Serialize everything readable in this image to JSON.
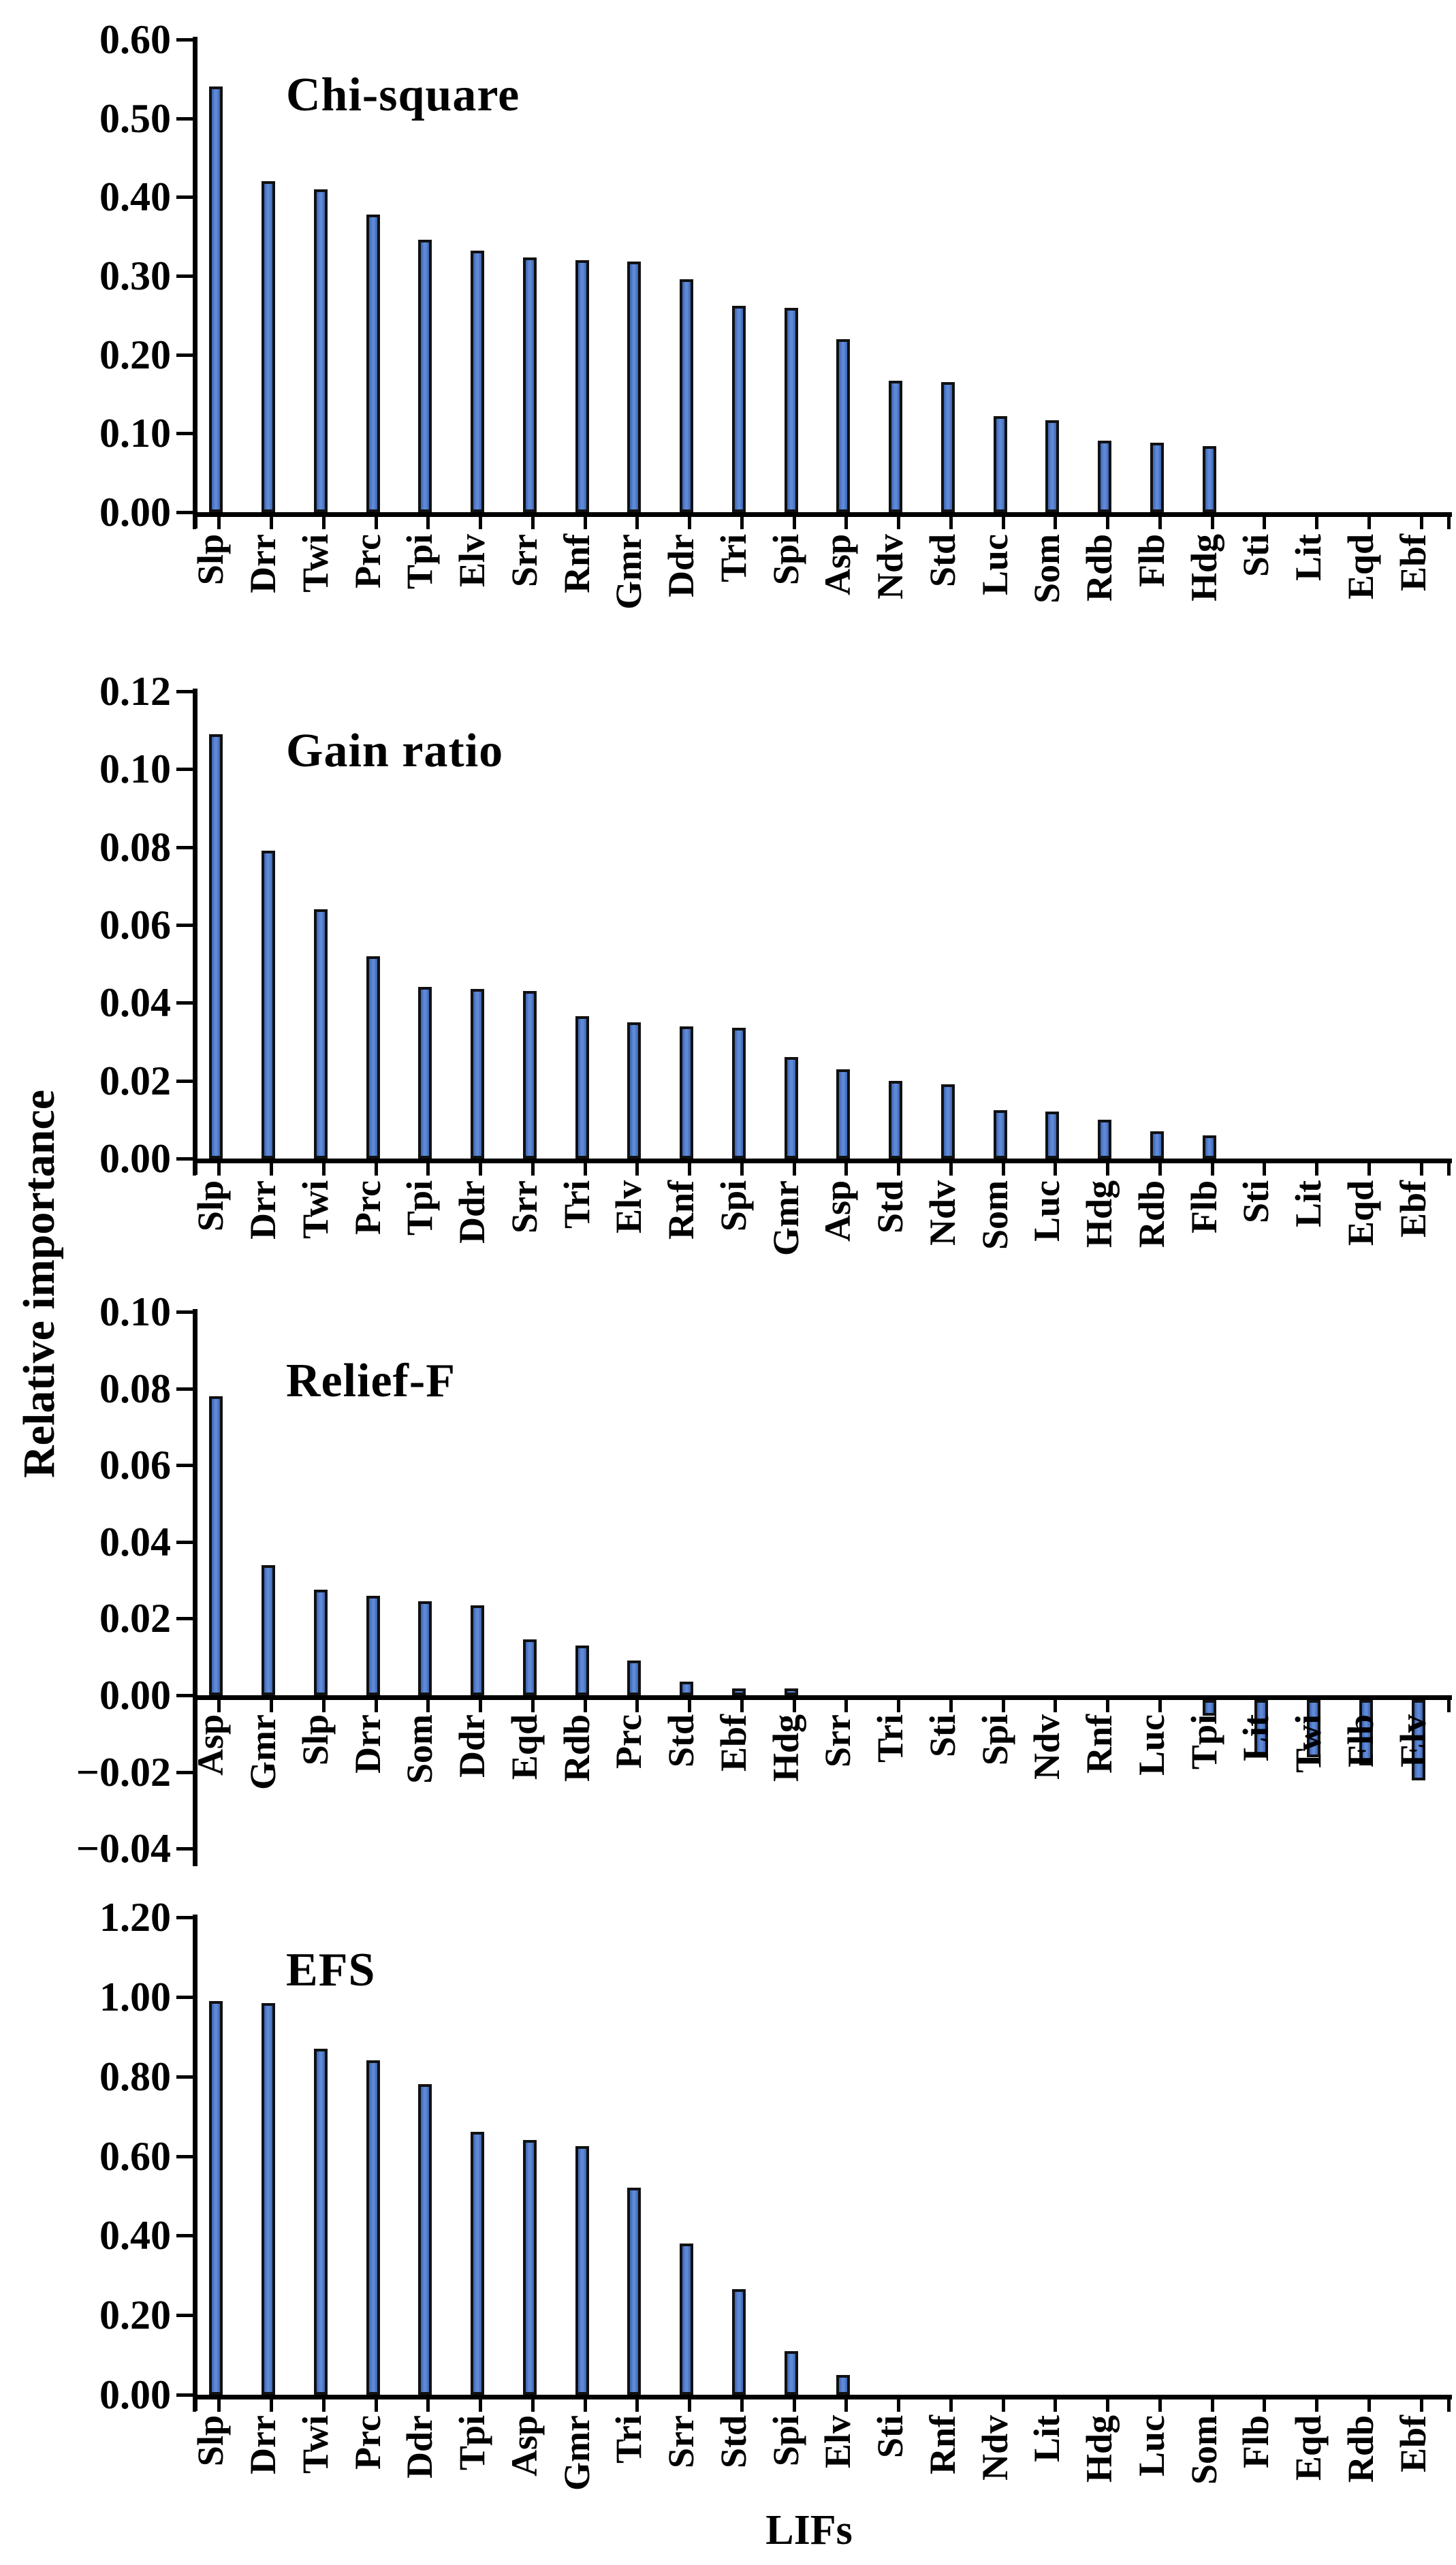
{
  "figure": {
    "ylabel": "Relative importance",
    "xlabel": "LIFs",
    "colors": {
      "bar_fill": "#4472C4",
      "bar_fill_light": "#5f8ad8",
      "bar_fill_dark": "#3c64b2",
      "bar_edge": "#111111",
      "axis": "#000000",
      "background": "#ffffff"
    }
  },
  "chart_data": [
    {
      "type": "bar",
      "title": "Chi-square",
      "ylabel": "Relative importance",
      "ylim": [
        0.0,
        0.6
      ],
      "ytick_step": 0.1,
      "yticks": [
        "0.60",
        "0.50",
        "0.40",
        "0.30",
        "0.20",
        "0.10",
        "0.00"
      ],
      "grid": false,
      "legend": "none",
      "categories": [
        "Slp",
        "Drr",
        "Twi",
        "Prc",
        "Tpi",
        "Elv",
        "Srr",
        "Rnf",
        "Gmr",
        "Ddr",
        "Tri",
        "Spi",
        "Asp",
        "Ndv",
        "Std",
        "Luc",
        "Som",
        "Rdb",
        "Flb",
        "Hdg",
        "Sti",
        "Lit",
        "Eqd",
        "Ebf"
      ],
      "values": [
        0.54,
        0.42,
        0.41,
        0.378,
        0.346,
        0.332,
        0.323,
        0.32,
        0.318,
        0.296,
        0.262,
        0.259,
        0.22,
        0.167,
        0.165,
        0.122,
        0.117,
        0.091,
        0.088,
        0.084,
        0,
        0,
        0,
        0
      ]
    },
    {
      "type": "bar",
      "title": "Gain ratio",
      "ylabel": "Relative importance",
      "ylim": [
        0.0,
        0.12
      ],
      "ytick_step": 0.02,
      "yticks": [
        "0.12",
        "0.10",
        "0.08",
        "0.06",
        "0.04",
        "0.02",
        "0.00"
      ],
      "grid": false,
      "legend": "none",
      "categories": [
        "Slp",
        "Drr",
        "Twi",
        "Prc",
        "Tpi",
        "Ddr",
        "Srr",
        "Tri",
        "Elv",
        "Rnf",
        "Spi",
        "Gmr",
        "Asp",
        "Std",
        "Ndv",
        "Som",
        "Luc",
        "Hdg",
        "Rdb",
        "Flb",
        "Sti",
        "Lit",
        "Eqd",
        "Ebf"
      ],
      "values": [
        0.109,
        0.079,
        0.064,
        0.052,
        0.044,
        0.0435,
        0.043,
        0.0365,
        0.035,
        0.034,
        0.0335,
        0.026,
        0.023,
        0.02,
        0.019,
        0.0125,
        0.012,
        0.01,
        0.007,
        0.006,
        0,
        0,
        0,
        0
      ]
    },
    {
      "type": "bar",
      "title": "Relief-F",
      "ylabel": "Relative importance",
      "ylim": [
        -0.04,
        0.1
      ],
      "ytick_step": 0.02,
      "yticks": [
        "0.10",
        "0.08",
        "0.06",
        "0.04",
        "0.02",
        "0.00",
        "−0.02",
        "−0.04"
      ],
      "grid": false,
      "legend": "none",
      "categories": [
        "Asp",
        "Gmr",
        "Slp",
        "Drr",
        "Som",
        "Ddr",
        "Eqd",
        "Rdb",
        "Prc",
        "Std",
        "Ebf",
        "Hdg",
        "Srr",
        "Tri",
        "Sti",
        "Spi",
        "Ndv",
        "Rnf",
        "Luc",
        "Tpi",
        "Lit",
        "Twi",
        "Flb",
        "Elv"
      ],
      "values": [
        0.078,
        0.034,
        0.0275,
        0.026,
        0.0245,
        0.0235,
        0.0145,
        0.013,
        0.009,
        0.0035,
        0.0015,
        0.0008,
        0,
        0,
        0,
        0,
        0,
        0,
        0,
        -0.004,
        -0.015,
        -0.015,
        -0.017,
        -0.021
      ]
    },
    {
      "type": "bar",
      "title": "EFS",
      "ylabel": "Relative importance",
      "xlabel": "LIFs",
      "ylim": [
        0.0,
        1.2
      ],
      "ytick_step": 0.2,
      "yticks": [
        "1.20",
        "1.00",
        "0.80",
        "0.60",
        "0.40",
        "0.20",
        "0.00"
      ],
      "grid": false,
      "legend": "none",
      "categories": [
        "Slp",
        "Drr",
        "Twi",
        "Prc",
        "Ddr",
        "Tpi",
        "Asp",
        "Gmr",
        "Tri",
        "Srr",
        "Std",
        "Spi",
        "Elv",
        "Sti",
        "Rnf",
        "Ndv",
        "Lit",
        "Hdg",
        "Luc",
        "Som",
        "Flb",
        "Eqd",
        "Rdb",
        "Ebf"
      ],
      "values": [
        0.99,
        0.985,
        0.87,
        0.84,
        0.78,
        0.66,
        0.64,
        0.625,
        0.52,
        0.38,
        0.265,
        0.11,
        0.05,
        0,
        0,
        0,
        0,
        0,
        0,
        0,
        0,
        0,
        0,
        0
      ]
    }
  ]
}
